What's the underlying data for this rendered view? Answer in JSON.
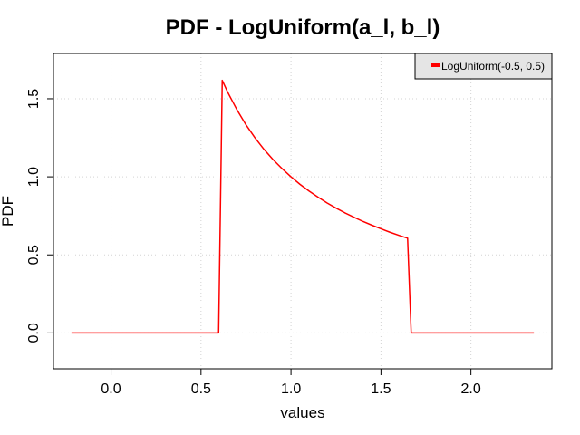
{
  "chart_data": {
    "type": "line",
    "title": "PDF - LogUniform(a_l, b_l)",
    "xlabel": "values",
    "ylabel": "PDF",
    "xlim": [
      -0.32,
      2.45
    ],
    "ylim": [
      -0.23,
      1.79
    ],
    "x_ticks": [
      0.0,
      0.5,
      1.0,
      1.5,
      2.0
    ],
    "x_tick_labels": [
      "0.0",
      "0.5",
      "1.0",
      "1.5",
      "2.0"
    ],
    "y_ticks": [
      0.0,
      0.5,
      1.0,
      1.5
    ],
    "y_tick_labels": [
      "0.0",
      "0.5",
      "1.0",
      "1.5"
    ],
    "grid": true,
    "legend_position": "top-right",
    "series": [
      {
        "name": "LogUniform(-0.5, 0.5)",
        "color": "#ff0000",
        "x": [
          -0.22,
          0.598,
          0.618,
          0.65,
          0.7,
          0.75,
          0.8,
          0.85,
          0.9,
          0.95,
          1.0,
          1.05,
          1.1,
          1.15,
          1.2,
          1.25,
          1.3,
          1.35,
          1.4,
          1.45,
          1.5,
          1.55,
          1.6,
          1.648,
          1.668,
          2.35
        ],
        "y": [
          0.0,
          0.0,
          1.618,
          1.538,
          1.429,
          1.333,
          1.25,
          1.176,
          1.111,
          1.053,
          1.0,
          0.952,
          0.909,
          0.87,
          0.833,
          0.8,
          0.769,
          0.741,
          0.714,
          0.69,
          0.667,
          0.645,
          0.625,
          0.607,
          0.0,
          0.0
        ]
      }
    ]
  }
}
